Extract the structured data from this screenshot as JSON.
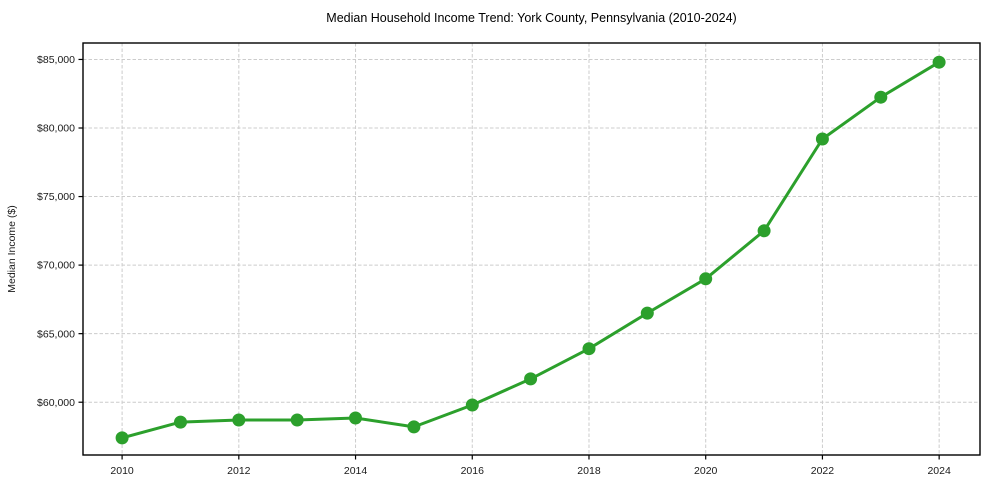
{
  "chart_data": {
    "type": "line",
    "title": "Median Household Income Trend: York County, Pennsylvania (2010-2024)",
    "xlabel": "",
    "ylabel": "Median Income ($)",
    "x": [
      2010,
      2011,
      2012,
      2013,
      2014,
      2015,
      2016,
      2017,
      2018,
      2019,
      2020,
      2021,
      2022,
      2023,
      2024
    ],
    "series": [
      {
        "name": "Median Household Income",
        "color": "#2ca02c",
        "marker": "circle",
        "values": [
          57400,
          58550,
          58700,
          58700,
          58850,
          58200,
          59800,
          61700,
          63900,
          66500,
          69000,
          72500,
          79200,
          82250,
          84800
        ]
      }
    ],
    "xticks": {
      "values": [
        2010,
        2012,
        2014,
        2016,
        2018,
        2020,
        2022,
        2024
      ],
      "labels": [
        "2010",
        "2012",
        "2014",
        "2016",
        "2018",
        "2020",
        "2022",
        "2024"
      ]
    },
    "yticks": {
      "values": [
        60000,
        65000,
        70000,
        75000,
        80000,
        85000
      ],
      "labels": [
        "$60,000",
        "$65,000",
        "$70,000",
        "$75,000",
        "$80,000",
        "$85,000"
      ]
    },
    "xlim": [
      2009.33,
      2024.7
    ],
    "ylim": [
      56150,
      86200
    ],
    "grid": {
      "show": true,
      "color": "#cccccc",
      "style": "dashed"
    },
    "legend": {
      "show": false
    },
    "colors": {
      "line": "#2ca02c",
      "spine": "#000000",
      "grid": "#cccccc",
      "background": "#ffffff"
    }
  }
}
